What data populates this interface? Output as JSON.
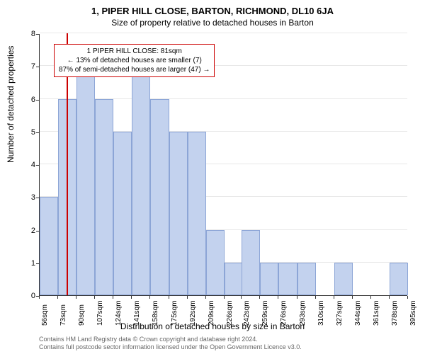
{
  "chart": {
    "type": "histogram",
    "title": "1, PIPER HILL CLOSE, BARTON, RICHMOND, DL10 6JA",
    "subtitle": "Size of property relative to detached houses in Barton",
    "ylabel": "Number of detached properties",
    "xlabel": "Distribution of detached houses by size in Barton",
    "ylim": [
      0,
      8
    ],
    "yticks": [
      0,
      1,
      2,
      3,
      4,
      5,
      6,
      7,
      8
    ],
    "xlim": [
      56,
      395
    ],
    "xtick_values": [
      56,
      73,
      90,
      107,
      124,
      141,
      158,
      175,
      192,
      209,
      226,
      242,
      259,
      276,
      293,
      310,
      327,
      344,
      361,
      378,
      395
    ],
    "xtick_unit": "sqm",
    "bar_width_sqm": 17,
    "bars": [
      {
        "x_start": 56,
        "value": 3
      },
      {
        "x_start": 73,
        "value": 6
      },
      {
        "x_start": 90,
        "value": 7
      },
      {
        "x_start": 107,
        "value": 6
      },
      {
        "x_start": 124,
        "value": 5
      },
      {
        "x_start": 141,
        "value": 7
      },
      {
        "x_start": 158,
        "value": 6
      },
      {
        "x_start": 175,
        "value": 5
      },
      {
        "x_start": 192,
        "value": 5
      },
      {
        "x_start": 209,
        "value": 2
      },
      {
        "x_start": 226,
        "value": 1
      },
      {
        "x_start": 242,
        "value": 2
      },
      {
        "x_start": 259,
        "value": 1
      },
      {
        "x_start": 276,
        "value": 1
      },
      {
        "x_start": 293,
        "value": 1
      },
      {
        "x_start": 327,
        "value": 1
      },
      {
        "x_start": 378,
        "value": 1
      }
    ],
    "reference_line_x": 81,
    "bar_color": "#c3d2ee",
    "bar_border_color": "#8ca5d6",
    "reference_line_color": "#cc0000",
    "grid_color": "#e8e8e8",
    "background_color": "#ffffff",
    "annotation": {
      "line1": "1 PIPER HILL CLOSE: 81sqm",
      "line2": "← 13% of detached houses are smaller (7)",
      "line3": "87% of semi-detached houses are larger (47) →"
    },
    "footer_line1": "Contains HM Land Registry data © Crown copyright and database right 2024.",
    "footer_line2": "Contains full postcode sector information licensed under the Open Government Licence v3.0."
  }
}
